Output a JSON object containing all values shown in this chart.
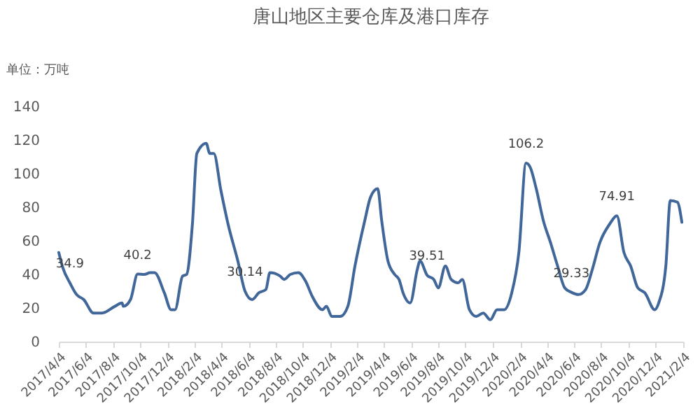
{
  "chart_data": {
    "type": "line",
    "title": "唐山地区主要仓库及港口库存",
    "ylabel": "单位：万吨",
    "x": [
      "2017-04-04",
      "2017-04-13",
      "2017-04-29",
      "2017-05-14",
      "2017-05-30",
      "2017-06-21",
      "2017-07-10",
      "2017-08-08",
      "2017-08-24",
      "2017-08-27",
      "2017-09-12",
      "2017-09-28",
      "2017-10-13",
      "2017-10-26",
      "2017-11-05",
      "2017-11-27",
      "2017-12-12",
      "2017-12-21",
      "2018-01-07",
      "2018-01-16",
      "2018-01-29",
      "2018-02-08",
      "2018-03-01",
      "2018-03-09",
      "2018-03-18",
      "2018-04-03",
      "2018-04-19",
      "2018-05-11",
      "2018-05-27",
      "2018-06-12",
      "2018-06-27",
      "2018-07-13",
      "2018-07-22",
      "2018-08-14",
      "2018-08-23",
      "2018-09-06",
      "2018-09-24",
      "2018-10-10",
      "2018-10-25",
      "2018-11-17",
      "2018-11-26",
      "2018-12-08",
      "2018-12-27",
      "2019-01-13",
      "2019-01-29",
      "2019-02-20",
      "2019-03-05",
      "2019-03-21",
      "2019-03-30",
      "2019-04-13",
      "2019-04-28",
      "2019-05-08",
      "2019-05-17",
      "2019-06-02",
      "2019-06-18",
      "2019-06-24",
      "2019-07-10",
      "2019-07-25",
      "2019-08-04",
      "2019-08-20",
      "2019-09-02",
      "2019-09-18",
      "2019-09-27",
      "2019-10-13",
      "2019-10-28",
      "2019-11-13",
      "2019-11-29",
      "2019-12-14",
      "2019-12-30",
      "2020-01-16",
      "2020-02-01",
      "2020-02-17",
      "2020-02-26",
      "2020-03-11",
      "2020-03-27",
      "2020-04-12",
      "2020-04-28",
      "2020-05-14",
      "2020-05-29",
      "2020-06-14",
      "2020-06-30",
      "2020-07-15",
      "2020-08-01",
      "2020-08-23",
      "2020-09-08",
      "2020-09-24",
      "2020-10-09",
      "2020-10-25",
      "2020-11-10",
      "2020-12-02",
      "2020-12-11",
      "2020-12-27",
      "2021-01-06",
      "2021-01-22",
      "2021-02-01"
    ],
    "series": [
      {
        "color": "#41669a",
        "values": [
          53,
          44,
          34.9,
          28,
          25,
          17,
          17,
          21,
          23,
          21,
          25,
          40.2,
          40,
          41,
          41,
          29,
          19,
          19,
          39,
          40,
          70,
          112,
          118,
          112,
          112,
          90,
          70,
          48,
          30.14,
          25,
          29,
          31,
          41,
          39,
          37,
          40,
          41,
          36,
          27,
          19,
          21,
          15,
          15,
          21,
          45,
          72,
          86,
          91,
          72,
          48,
          40,
          37,
          29,
          23,
          43,
          48,
          39.51,
          37,
          32,
          45,
          37,
          35,
          37,
          19,
          15,
          17,
          13,
          19,
          19,
          29,
          53,
          106.2,
          104,
          91,
          72,
          59,
          45,
          32,
          29.33,
          28,
          31,
          43,
          59,
          70,
          74.91,
          53,
          45,
          32,
          29,
          19,
          23,
          45,
          84,
          83,
          71
        ]
      }
    ],
    "annotations": [
      {
        "text": "34.9",
        "x": "2017-04-29",
        "y": 34.9
      },
      {
        "text": "40.2",
        "x": "2017-09-28",
        "y": 40.2
      },
      {
        "text": "30.14",
        "x": "2018-05-27",
        "y": 30.14
      },
      {
        "text": "39.51",
        "x": "2019-07-10",
        "y": 39.51
      },
      {
        "text": "106.2",
        "x": "2020-02-17",
        "y": 106.2
      },
      {
        "text": "29.33",
        "x": "2020-05-29",
        "y": 29.33
      },
      {
        "text": "74.91",
        "x": "2020-09-08",
        "y": 74.91
      }
    ],
    "xlim": [
      "2017-04-04",
      "2021-02-04"
    ],
    "xticks": [
      {
        "value": "2017-04-04",
        "label": "2017/4/4"
      },
      {
        "value": "2017-06-04",
        "label": "2017/6/4"
      },
      {
        "value": "2017-08-04",
        "label": "2017/8/4"
      },
      {
        "value": "2017-10-04",
        "label": "2017/10/4"
      },
      {
        "value": "2017-12-04",
        "label": "2017/12/4"
      },
      {
        "value": "2018-02-04",
        "label": "2018/2/4"
      },
      {
        "value": "2018-04-04",
        "label": "2018/4/4"
      },
      {
        "value": "2018-06-04",
        "label": "2018/6/4"
      },
      {
        "value": "2018-08-04",
        "label": "2018/8/4"
      },
      {
        "value": "2018-10-04",
        "label": "2018/10/4"
      },
      {
        "value": "2018-12-04",
        "label": "2018/12/4"
      },
      {
        "value": "2019-02-04",
        "label": "2019/2/4"
      },
      {
        "value": "2019-04-04",
        "label": "2019/4/4"
      },
      {
        "value": "2019-06-04",
        "label": "2019/6/4"
      },
      {
        "value": "2019-08-04",
        "label": "2019/8/4"
      },
      {
        "value": "2019-10-04",
        "label": "2019/10/4"
      },
      {
        "value": "2019-12-04",
        "label": "2019/12/4"
      },
      {
        "value": "2020-02-04",
        "label": "2020/2/4"
      },
      {
        "value": "2020-04-04",
        "label": "2020/4/4"
      },
      {
        "value": "2020-06-04",
        "label": "2020/6/4"
      },
      {
        "value": "2020-08-04",
        "label": "2020/8/4"
      },
      {
        "value": "2020-10-04",
        "label": "2020/10/4"
      },
      {
        "value": "2020-12-04",
        "label": "2020/12/4"
      },
      {
        "value": "2021-02-04",
        "label": "2021/2/4"
      }
    ],
    "ylim": [
      0,
      140
    ],
    "yticks": [
      0,
      20,
      40,
      60,
      80,
      100,
      120,
      140
    ],
    "grid": false,
    "legend": false,
    "marker": "none",
    "line_style": "solid"
  }
}
